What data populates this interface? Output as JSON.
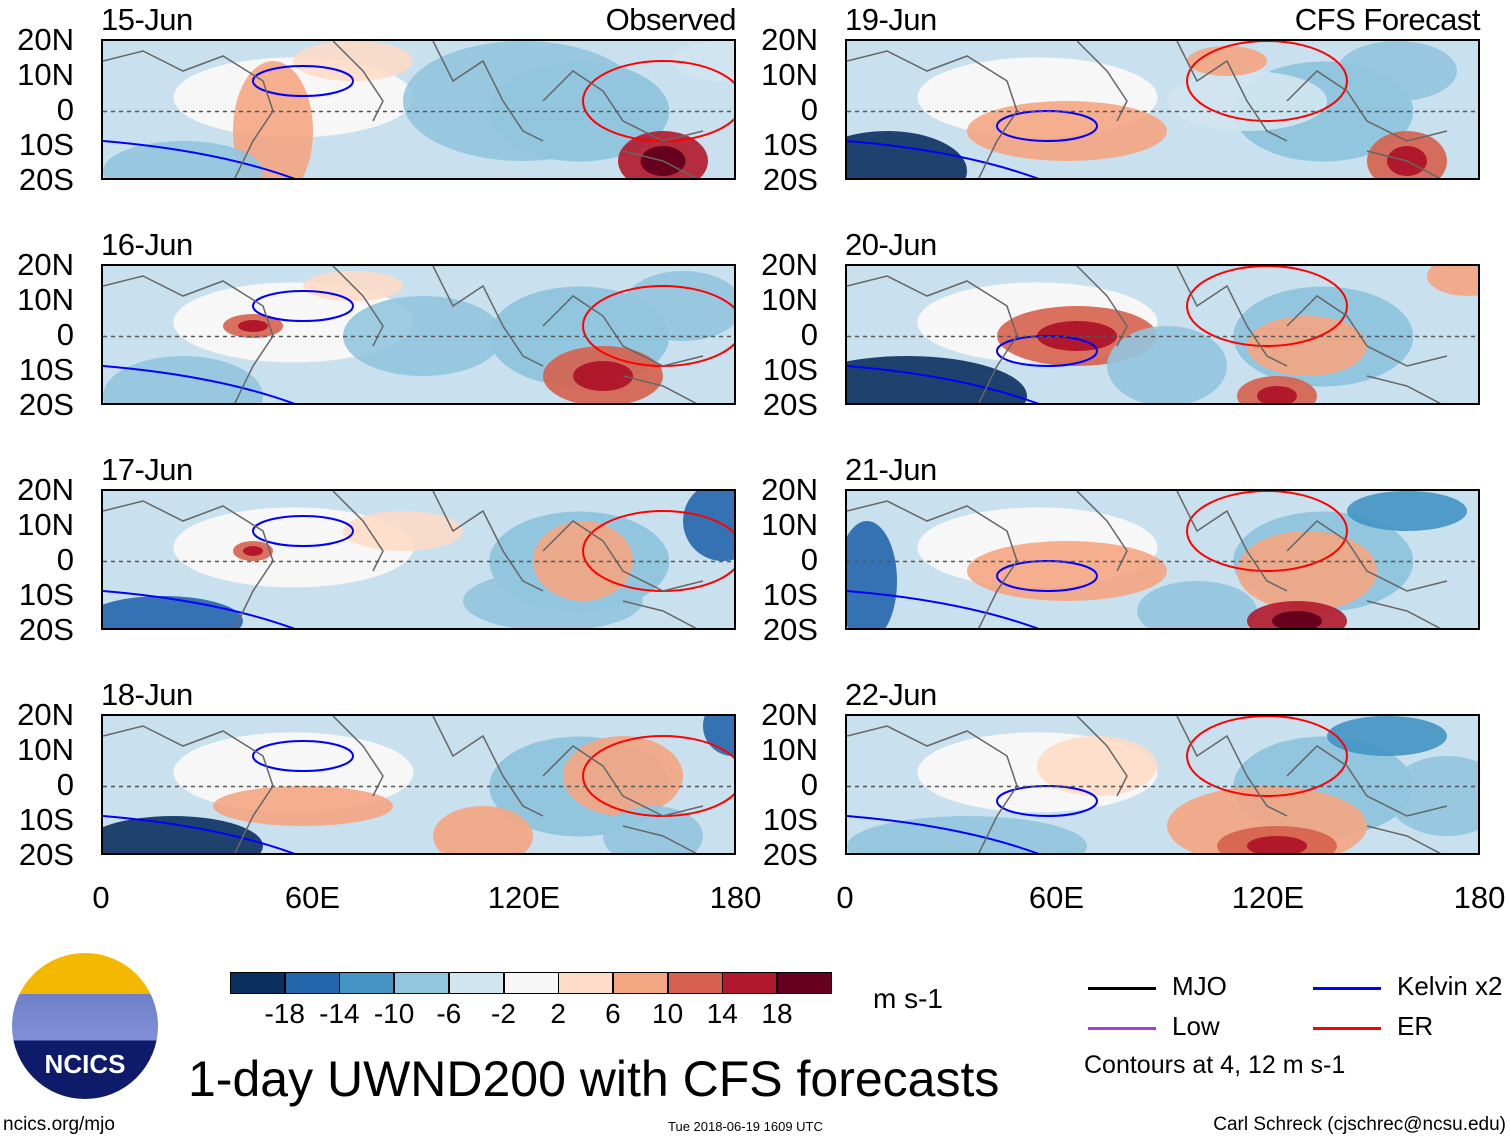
{
  "panels": {
    "left": [
      {
        "date": "15-Jun",
        "tag": "Observed"
      },
      {
        "date": "16-Jun"
      },
      {
        "date": "17-Jun"
      },
      {
        "date": "18-Jun"
      }
    ],
    "right": [
      {
        "date": "19-Jun",
        "tag": "CFS Forecast"
      },
      {
        "date": "20-Jun"
      },
      {
        "date": "21-Jun"
      },
      {
        "date": "22-Jun"
      }
    ]
  },
  "lat_labels": [
    "20N",
    "10N",
    "0",
    "10S",
    "20S"
  ],
  "lon_labels": [
    "0",
    "60E",
    "120E",
    "180"
  ],
  "colorbar": {
    "colors": [
      "#0b305f",
      "#2466ac",
      "#4393c3",
      "#92c5de",
      "#d1e5f0",
      "#f7f7f7",
      "#fddbc7",
      "#f4a582",
      "#d6604d",
      "#b2182b",
      "#67001f"
    ],
    "labels": [
      "-18",
      "-14",
      "-10",
      "-6",
      "-2",
      "2",
      "6",
      "10",
      "14",
      "18"
    ],
    "units": "m s-1"
  },
  "legend": {
    "items": [
      {
        "label": "MJO",
        "color": "#000000"
      },
      {
        "label": "Kelvin x2",
        "color": "#0000ff"
      },
      {
        "label": "Low",
        "color": "#a040e0"
      },
      {
        "label": "ER",
        "color": "#ff0000"
      }
    ],
    "note": "Contours at 4, 12 m s-1"
  },
  "logo": {
    "text": "NCICS"
  },
  "title": "1-day UWND200 with CFS forecasts",
  "footer": {
    "url": "ncics.org/mjo",
    "timestamp": "Tue 2018-06-19 1609 UTC",
    "credit": "Carl Schreck (cjschrec@ncsu.edu)"
  }
}
